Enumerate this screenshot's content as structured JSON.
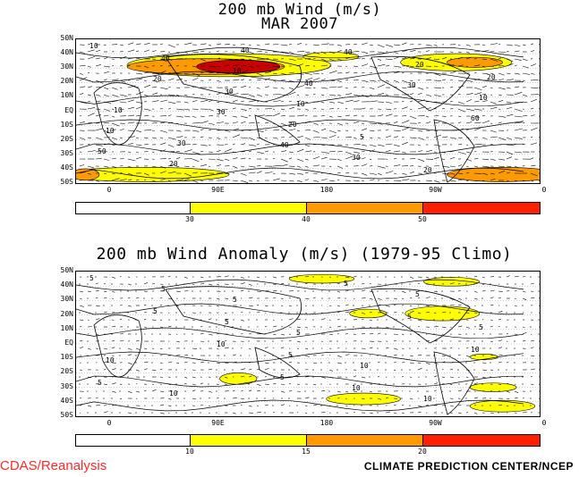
{
  "top_title_line1": "200 mb Wind (m/s)",
  "top_title_line2": "MAR 2007",
  "bottom_title": "200 mb Wind Anomaly (m/s) (1979-95 Climo)",
  "lat_labels": [
    "50N",
    "40N",
    "30N",
    "20N",
    "10N",
    "EQ",
    "10S",
    "20S",
    "30S",
    "40S",
    "50S"
  ],
  "lon_labels": [
    "0",
    "90E",
    "180",
    "90W",
    "0"
  ],
  "top_colorbar": {
    "ticks": [
      "30",
      "40",
      "50"
    ],
    "colors": [
      "#ffffff",
      "#ffff00",
      "#ff9a00",
      "#ff2000"
    ]
  },
  "bottom_colorbar": {
    "ticks": [
      "10",
      "15",
      "20"
    ],
    "colors": [
      "#ffffff",
      "#ffff00",
      "#ff9a00",
      "#ff2000"
    ]
  },
  "top_contour_labels": [
    "10",
    "20",
    "30",
    "40",
    "40",
    "30",
    "60",
    "50",
    "40",
    "30",
    "20",
    "30",
    "20",
    "10",
    "10",
    "20",
    "10",
    "10",
    "5",
    "20",
    "20",
    "10",
    "30",
    "40",
    "40"
  ],
  "bottom_contour_labels": [
    "5",
    "5",
    "10",
    "5",
    "5",
    "5",
    "10",
    "5",
    "5",
    "5",
    "5",
    "10",
    "5",
    "5",
    "10",
    "10",
    "5",
    "5",
    "10",
    "10"
  ],
  "footer_left": "CDAS/Reanalysis",
  "footer_right": "CLIMATE PREDICTION CENTER/NCEP",
  "colors": {
    "yellow": "#ffff00",
    "orange": "#ff9a00",
    "red": "#ff2000",
    "dark_red": "#c80000",
    "footer_left": "#ff2b2b"
  }
}
